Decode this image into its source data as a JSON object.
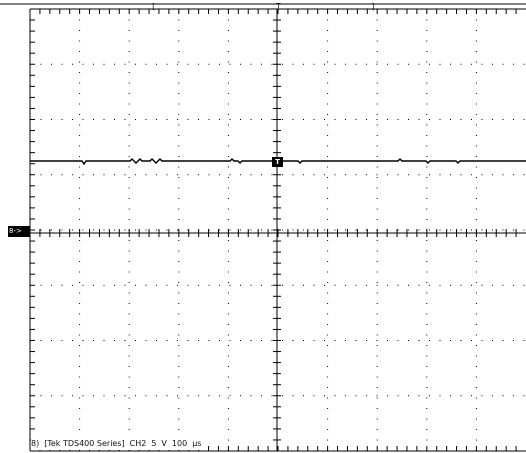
{
  "scope": {
    "channel_marker": "8->",
    "trigger_marker": "T",
    "status": {
      "run_index": "8)",
      "instrument": "[Tek TDS400 Series]",
      "channel": "CH2",
      "volts_per_div": "5",
      "volts_unit": "V",
      "time_per_div": "100",
      "time_unit": "µs"
    },
    "top_markers": {
      "left_bracket": "[",
      "trigger_position": "T",
      "right_bracket": "]"
    },
    "grid": {
      "h_divisions": 10,
      "v_divisions": 8
    },
    "colors": {
      "background": "#ffffff",
      "grid": "#000000",
      "trace": "#000000"
    }
  }
}
